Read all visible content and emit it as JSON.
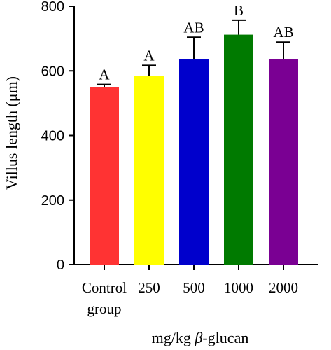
{
  "chart_data": {
    "type": "bar",
    "categories": [
      [
        "Control",
        "group"
      ],
      [
        "250"
      ],
      [
        "500"
      ],
      [
        "1000"
      ],
      [
        "2000"
      ]
    ],
    "values": [
      550,
      585,
      636,
      712,
      637
    ],
    "errors": [
      8,
      32,
      68,
      45,
      52
    ],
    "significance_labels": [
      "A",
      "A",
      "AB",
      "B",
      "AB"
    ],
    "colors": [
      "#ff3333",
      "#ffff00",
      "#0000cc",
      "#007a00",
      "#7a0093"
    ],
    "ylabel": "Villus length (μm)",
    "xlabel_prefix": "mg/kg ",
    "xlabel_italic": "β",
    "xlabel_suffix": "-glucan",
    "ylim": [
      0,
      800
    ],
    "yticks": [
      0,
      200,
      400,
      600,
      800
    ],
    "grid": false
  }
}
